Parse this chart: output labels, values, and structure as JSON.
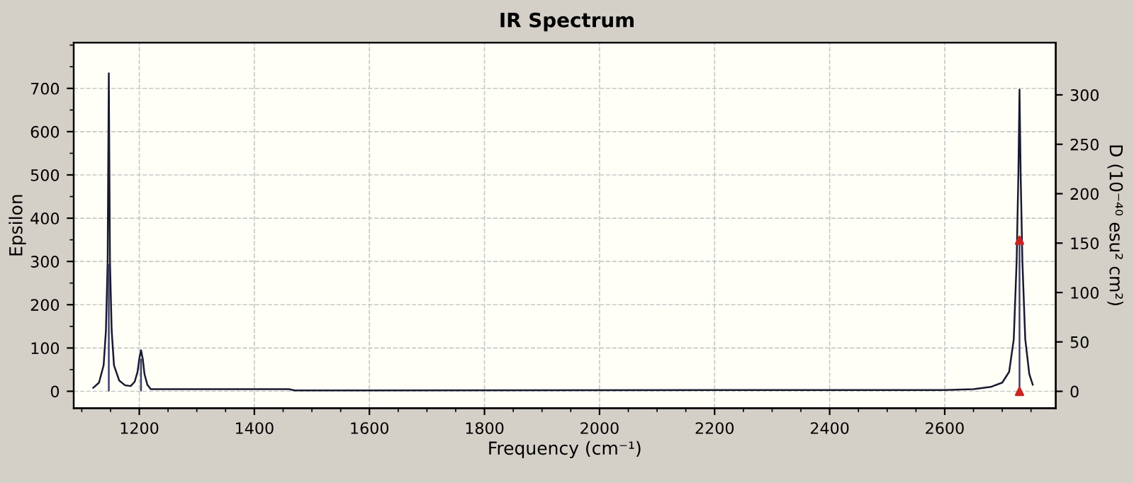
{
  "chart_data": {
    "type": "line",
    "title": "IR Spectrum",
    "xlabel": "Frequency (cm⁻¹)",
    "ylabel": "Epsilon",
    "y2label": "D (10⁻⁴⁰ esu² cm²)",
    "xlim": [
      1086,
      2793
    ],
    "xticks": [
      1200,
      1400,
      1600,
      1800,
      2000,
      2200,
      2400,
      2600
    ],
    "ylim": [
      -39,
      806
    ],
    "yticks": [
      0,
      100,
      200,
      300,
      400,
      500,
      600,
      700
    ],
    "y2lim": [
      -17,
      353
    ],
    "y2ticks": [
      0,
      50,
      100,
      150,
      200,
      250,
      300
    ],
    "grid": true,
    "line_style": "solid",
    "series": [
      {
        "color": "#1a1a2e",
        "x": [
          1120,
          1130,
          1138,
          1142,
          1145,
          1147,
          1149,
          1152,
          1156,
          1165,
          1175,
          1185,
          1192,
          1197,
          1200,
          1203,
          1206,
          1209,
          1214,
          1220,
          1460,
          1470,
          2600,
          2650,
          2680,
          2700,
          2712,
          2720,
          2725,
          2728,
          2730,
          2732,
          2735,
          2740,
          2747,
          2753
        ],
        "values": [
          8,
          20,
          60,
          140,
          300,
          735,
          300,
          140,
          60,
          25,
          14,
          12,
          22,
          45,
          75,
          95,
          75,
          40,
          15,
          5,
          5,
          2,
          3,
          5,
          10,
          20,
          45,
          120,
          300,
          500,
          697,
          500,
          300,
          120,
          40,
          15
        ]
      },
      {
        "type": "bar",
        "axis": "y2",
        "color": "#3a3a6a",
        "x": [
          1147,
          1203,
          2730
        ],
        "values": [
          129,
          33,
          153
        ]
      },
      {
        "type": "scatter",
        "axis": "y2",
        "color": "#cc2222",
        "marker": "triangle",
        "x": [
          2730,
          2730
        ],
        "values": [
          153,
          0
        ]
      }
    ]
  }
}
